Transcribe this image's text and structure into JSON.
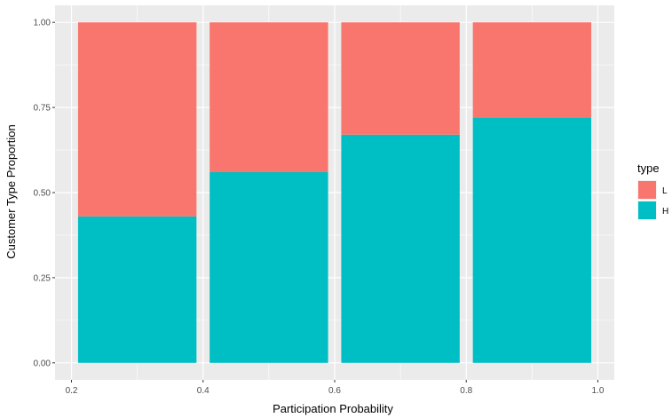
{
  "chart_data": {
    "type": "bar",
    "stacked": true,
    "position": "fill",
    "x": [
      0.3,
      0.5,
      0.7,
      0.9
    ],
    "bin_width": 0.18,
    "series": [
      {
        "name": "H",
        "values": [
          0.43,
          0.56,
          0.67,
          0.72
        ],
        "color": "#00BFC4"
      },
      {
        "name": "L",
        "values": [
          0.57,
          0.44,
          0.33,
          0.28
        ],
        "color": "#F8766D"
      }
    ],
    "xlabel": "Participation Probability",
    "ylabel": "Customer Type Proportion",
    "xlim": [
      0.175,
      1.025
    ],
    "ylim": [
      -0.05,
      1.05
    ],
    "xticks": [
      0.2,
      0.4,
      0.6,
      0.8,
      1.0
    ],
    "xtick_labels": [
      "0.2",
      "0.4",
      "0.6",
      "0.8",
      "1.0"
    ],
    "yticks": [
      0,
      0.25,
      0.5,
      0.75,
      1.0
    ],
    "ytick_labels": [
      "0.00",
      "0.25",
      "0.50",
      "0.75",
      "1.00"
    ],
    "grid": true,
    "panel_background": "#EBEBEB",
    "legend": {
      "title": "type",
      "placement": "right",
      "entries": [
        {
          "label": "L",
          "color": "#F8766D"
        },
        {
          "label": "H",
          "color": "#00BFC4"
        }
      ]
    }
  }
}
